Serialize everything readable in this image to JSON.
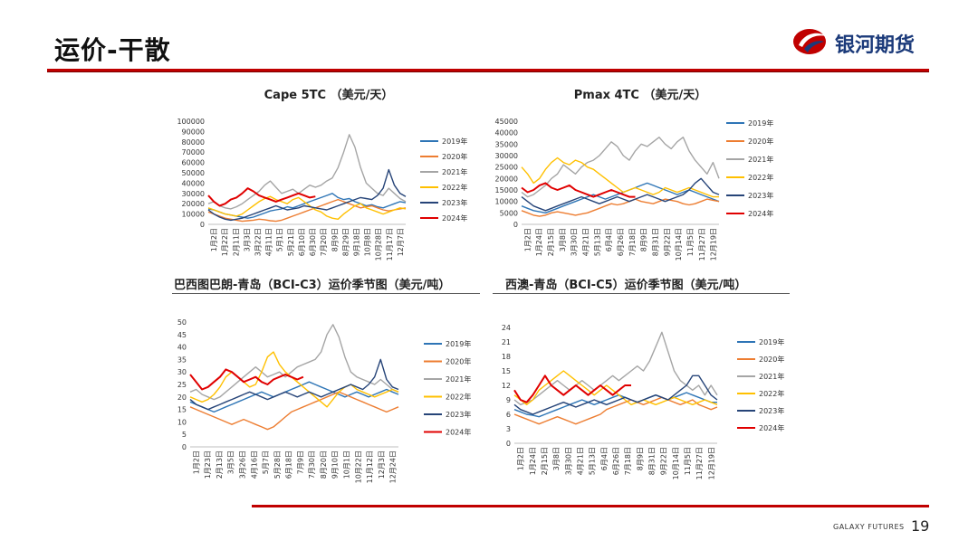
{
  "page": {
    "title": "运价-干散",
    "brand": "银河期货",
    "footer": "GALAXY FUTURES",
    "page_number": "19"
  },
  "legend_years": [
    "2019年",
    "2020年",
    "2021年",
    "2022年",
    "2023年",
    "2024年"
  ],
  "colors": {
    "2019年": "#2e75b6",
    "2020年": "#ed7d31",
    "2021年": "#a5a5a5",
    "2022年": "#ffc000",
    "2023年": "#264478",
    "2024年": "#e00000",
    "brand_red": "#c00000",
    "brand_blue": "#1b3a7a"
  },
  "chart_data": [
    {
      "type": "line",
      "title": "Cape 5TC （美元/天）",
      "ylim": [
        0,
        100000
      ],
      "yticks": [
        "100000",
        "90000",
        "80000",
        "70000",
        "60000",
        "50000",
        "40000",
        "30000",
        "20000",
        "10000",
        "0"
      ],
      "xticks": [
        "1月2日",
        "1月22日",
        "2月11日",
        "3月3日",
        "3月22日",
        "4月11日",
        "5月1日",
        "5月21日",
        "6月10日",
        "6月30日",
        "7月20日",
        "8月9日",
        "8月29日",
        "9月18日",
        "10月8日",
        "10月28日",
        "11月17日",
        "12月7日"
      ],
      "series": [
        {
          "name": "2019年",
          "values": [
            15000,
            14000,
            12000,
            10000,
            9000,
            8000,
            7000,
            6000,
            7000,
            9000,
            11000,
            13000,
            14000,
            15000,
            17000,
            16000,
            18000,
            20000,
            22000,
            24000,
            26000,
            28000,
            30000,
            26000,
            24000,
            25000,
            22000,
            20000,
            18000,
            19000,
            17000,
            16000,
            18000,
            20000,
            22000,
            21000
          ]
        },
        {
          "name": "2020年",
          "values": [
            12000,
            10000,
            8000,
            6000,
            5000,
            4000,
            3000,
            3500,
            4000,
            5000,
            4500,
            3500,
            3000,
            4000,
            6000,
            8000,
            10000,
            12000,
            14000,
            16000,
            18000,
            20000,
            22000,
            24000,
            22000,
            20000,
            18000,
            16000,
            17000,
            18000,
            16000,
            14000,
            13000,
            14000,
            15000,
            16000
          ]
        },
        {
          "name": "2021年",
          "values": [
            20000,
            22000,
            18000,
            16000,
            15000,
            17000,
            20000,
            24000,
            28000,
            32000,
            38000,
            42000,
            36000,
            30000,
            32000,
            34000,
            30000,
            34000,
            38000,
            36000,
            38000,
            42000,
            45000,
            55000,
            70000,
            87000,
            75000,
            55000,
            40000,
            35000,
            30000,
            28000,
            35000,
            30000,
            25000,
            22000
          ]
        },
        {
          "name": "2022年",
          "values": [
            16000,
            14000,
            12000,
            10000,
            9000,
            8000,
            10000,
            14000,
            18000,
            22000,
            25000,
            27000,
            24000,
            22000,
            20000,
            24000,
            26000,
            22000,
            18000,
            14000,
            12000,
            8000,
            6000,
            5000,
            10000,
            14000,
            18000,
            20000,
            16000,
            14000,
            12000,
            10000,
            12000,
            14000,
            16000,
            15000
          ]
        },
        {
          "name": "2023年",
          "values": [
            14000,
            10000,
            7000,
            5000,
            4000,
            5000,
            6000,
            8000,
            10000,
            12000,
            14000,
            16000,
            18000,
            16000,
            14000,
            15000,
            16000,
            18000,
            17000,
            16000,
            15000,
            14000,
            16000,
            18000,
            20000,
            22000,
            24000,
            26000,
            25000,
            24000,
            28000,
            35000,
            53000,
            38000,
            30000,
            27000
          ]
        },
        {
          "name": "2024年",
          "values": [
            28000,
            22000,
            18000,
            20000,
            24000,
            26000,
            30000,
            35000,
            32000,
            28000,
            26000,
            24000,
            22000,
            24000,
            26000,
            28000,
            30000,
            28000,
            26000,
            27000
          ]
        }
      ]
    },
    {
      "type": "line",
      "title": "Pmax 4TC （美元/天）",
      "ylim": [
        0,
        45000
      ],
      "yticks": [
        "45000",
        "40000",
        "35000",
        "30000",
        "25000",
        "20000",
        "15000",
        "10000",
        "5000",
        "0"
      ],
      "xticks": [
        "1月2日",
        "1月24日",
        "2月15日",
        "3月8日",
        "3月30日",
        "4月21日",
        "5月13日",
        "6月4日",
        "6月26日",
        "7月18日",
        "8月9日",
        "8月31日",
        "9月22日",
        "10月14日",
        "11月5日",
        "11月27日",
        "12月19日"
      ],
      "series": [
        {
          "name": "2019年",
          "values": [
            8000,
            7000,
            6000,
            5500,
            5000,
            6000,
            7000,
            8000,
            9000,
            10000,
            11000,
            12000,
            13000,
            12000,
            11000,
            12000,
            13000,
            14000,
            15000,
            16000,
            17000,
            18000,
            17000,
            16000,
            15000,
            14000,
            13000,
            14000,
            15000,
            14000,
            13000,
            12000,
            11000,
            10000
          ]
        },
        {
          "name": "2020年",
          "values": [
            6000,
            5000,
            4000,
            3500,
            4000,
            5000,
            5500,
            5000,
            4500,
            4000,
            4500,
            5000,
            6000,
            7000,
            8000,
            9000,
            8500,
            9000,
            10000,
            11000,
            10000,
            9500,
            9000,
            10000,
            11000,
            10500,
            10000,
            9000,
            8500,
            9000,
            10000,
            11000,
            10500,
            10000
          ]
        },
        {
          "name": "2021年",
          "values": [
            14000,
            12000,
            13000,
            15000,
            17000,
            20000,
            22000,
            26000,
            24000,
            22000,
            25000,
            27000,
            28000,
            30000,
            33000,
            36000,
            34000,
            30000,
            28000,
            32000,
            35000,
            34000,
            36000,
            38000,
            35000,
            33000,
            36000,
            38000,
            32000,
            28000,
            25000,
            22000,
            27000,
            20000
          ]
        },
        {
          "name": "2022年",
          "values": [
            25000,
            22000,
            18000,
            20000,
            24000,
            27000,
            29000,
            27000,
            26000,
            28000,
            27000,
            25000,
            24000,
            22000,
            20000,
            18000,
            16000,
            14000,
            15000,
            16000,
            15000,
            14000,
            13000,
            14000,
            16000,
            15000,
            14000,
            15000,
            16000,
            15000,
            14000,
            13000,
            12000,
            12000
          ]
        },
        {
          "name": "2023年",
          "values": [
            12000,
            10000,
            8000,
            7000,
            6000,
            7000,
            8000,
            9000,
            10000,
            11000,
            12000,
            11000,
            10000,
            9000,
            10000,
            11000,
            12000,
            11000,
            10000,
            11000,
            12000,
            13000,
            12000,
            11000,
            10000,
            11000,
            12000,
            13000,
            15000,
            18000,
            20000,
            17000,
            14000,
            13000
          ]
        },
        {
          "name": "2024年",
          "values": [
            16000,
            14000,
            15000,
            17000,
            18000,
            16000,
            15000,
            16000,
            17000,
            15000,
            14000,
            13000,
            12000,
            13000,
            14000,
            15000,
            14000,
            13000,
            12000,
            12000
          ]
        }
      ]
    },
    {
      "type": "line",
      "title": "巴西图巴朗-青岛（BCI-C3）运价季节图（美元/吨）",
      "ylim": [
        0,
        50
      ],
      "yticks": [
        "50",
        "45",
        "40",
        "35",
        "30",
        "25",
        "20",
        "15",
        "10",
        "5",
        "0"
      ],
      "xticks": [
        "1月2日",
        "1月23日",
        "2月13日",
        "3月5日",
        "3月26日",
        "4月16日",
        "5月7日",
        "5月28日",
        "6月18日",
        "7月9日",
        "7月30日",
        "8月20日",
        "9月10日",
        "10月1日",
        "10月22日",
        "11月12日",
        "12月3日",
        "12月24日"
      ],
      "series": [
        {
          "name": "2019年",
          "values": [
            18,
            17,
            16,
            15,
            14,
            15,
            16,
            17,
            18,
            19,
            20,
            21,
            22,
            21,
            20,
            21,
            22,
            23,
            24,
            25,
            26,
            25,
            24,
            23,
            22,
            21,
            20,
            21,
            22,
            21,
            20,
            21,
            22,
            23,
            22,
            21
          ]
        },
        {
          "name": "2020年",
          "values": [
            16,
            15,
            14,
            13,
            12,
            11,
            10,
            9,
            10,
            11,
            10,
            9,
            8,
            7,
            8,
            10,
            12,
            14,
            15,
            16,
            17,
            18,
            19,
            20,
            21,
            22,
            21,
            20,
            19,
            18,
            17,
            16,
            15,
            14,
            15,
            16
          ]
        },
        {
          "name": "2021年",
          "values": [
            22,
            23,
            21,
            20,
            19,
            20,
            22,
            24,
            26,
            28,
            30,
            32,
            30,
            28,
            29,
            30,
            28,
            30,
            32,
            33,
            34,
            35,
            38,
            45,
            49,
            44,
            36,
            30,
            28,
            27,
            26,
            25,
            27,
            25,
            23,
            22
          ]
        },
        {
          "name": "2022年",
          "values": [
            20,
            19,
            18,
            19,
            21,
            24,
            28,
            30,
            28,
            26,
            24,
            25,
            30,
            36,
            38,
            33,
            30,
            28,
            26,
            24,
            22,
            20,
            18,
            16,
            19,
            22,
            24,
            25,
            23,
            22,
            21,
            20,
            21,
            22,
            23,
            22
          ]
        },
        {
          "name": "2023年",
          "values": [
            19,
            17,
            16,
            15,
            16,
            17,
            18,
            19,
            20,
            21,
            22,
            21,
            20,
            19,
            20,
            21,
            22,
            21,
            20,
            21,
            22,
            21,
            20,
            21,
            22,
            23,
            24,
            25,
            24,
            23,
            25,
            28,
            35,
            27,
            24,
            23
          ]
        },
        {
          "name": "2024年",
          "values": [
            29,
            26,
            23,
            24,
            26,
            28,
            31,
            30,
            28,
            26,
            27,
            28,
            26,
            25,
            27,
            28,
            29,
            28,
            27,
            28
          ]
        }
      ]
    },
    {
      "type": "line",
      "title": "西澳-青岛（BCI-C5）运价季节图（美元/吨）",
      "ylim": [
        0,
        24
      ],
      "yticks": [
        "24",
        "21",
        "18",
        "15",
        "12",
        "9",
        "6",
        "3",
        "0"
      ],
      "xticks": [
        "1月2日",
        "1月24日",
        "2月15日",
        "3月8日",
        "3月30日",
        "4月21日",
        "5月13日",
        "6月4日",
        "6月26日",
        "7月18日",
        "8月9日",
        "8月31日",
        "9月22日",
        "10月14日",
        "11月5日",
        "11月27日",
        "12月19日"
      ],
      "series": [
        {
          "name": "2019年",
          "values": [
            7,
            6.5,
            6,
            5.8,
            5.5,
            6,
            6.5,
            7,
            7.5,
            8,
            8.5,
            9,
            8.5,
            8,
            8.5,
            9,
            9.5,
            10,
            9.5,
            9,
            8.5,
            9,
            9.5,
            10,
            9.5,
            9,
            9.5,
            10,
            10.5,
            10,
            9.5,
            9,
            8.5,
            8.5
          ]
        },
        {
          "name": "2020年",
          "values": [
            6,
            5.5,
            5,
            4.5,
            4,
            4.5,
            5,
            5.5,
            5,
            4.5,
            4,
            4.5,
            5,
            5.5,
            6,
            7,
            7.5,
            8,
            8.5,
            9,
            8.5,
            8,
            8.5,
            9,
            9.5,
            9,
            8.5,
            8,
            8.5,
            9,
            8,
            7.5,
            7,
            7.5
          ]
        },
        {
          "name": "2021年",
          "values": [
            9,
            8,
            8.5,
            9,
            10,
            11,
            12,
            13,
            12,
            11,
            12,
            13,
            12,
            11,
            12,
            13,
            14,
            13,
            14,
            15,
            16,
            15,
            17,
            20,
            23,
            19,
            15,
            13,
            12,
            11,
            12,
            10,
            12,
            10
          ]
        },
        {
          "name": "2022年",
          "values": [
            10,
            9,
            8,
            9,
            11,
            12,
            13,
            14,
            15,
            14,
            13,
            12,
            11,
            10,
            11,
            12,
            11,
            10,
            9,
            8,
            8.5,
            9,
            8.5,
            8,
            8.5,
            9,
            9.5,
            9,
            8.5,
            8,
            8.5,
            9,
            8.5,
            8
          ]
        },
        {
          "name": "2023年",
          "values": [
            8,
            7,
            6.5,
            6,
            6.5,
            7,
            7.5,
            8,
            8.5,
            8,
            7.5,
            8,
            8.5,
            9,
            8.5,
            8,
            8.5,
            9,
            9.5,
            9,
            8.5,
            9,
            9.5,
            10,
            9.5,
            9,
            10,
            11,
            12,
            14,
            14,
            12,
            10,
            9
          ]
        },
        {
          "name": "2024年",
          "values": [
            11,
            9,
            8.5,
            10,
            12,
            14,
            12,
            11,
            10,
            11,
            12,
            11,
            10,
            11,
            12,
            11,
            10,
            11,
            12,
            12
          ]
        }
      ]
    }
  ]
}
